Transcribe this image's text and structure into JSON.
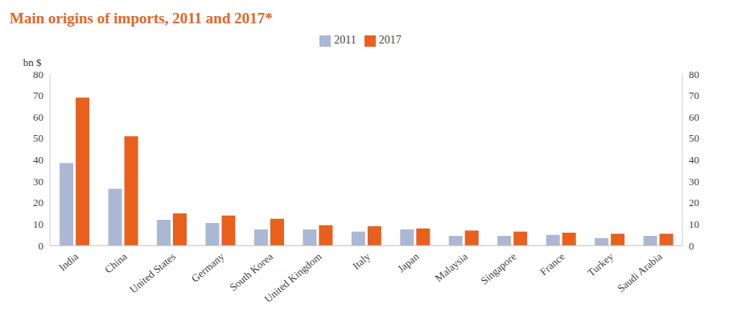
{
  "chart_data": {
    "type": "bar",
    "title": "Main origins of imports, 2011 and 2017*",
    "y_label": "bn $",
    "categories": [
      "India",
      "China",
      "United States",
      "Germany",
      "South Korea",
      "United Kingdom",
      "Italy",
      "Japan",
      "Malaysia",
      "Singapore",
      "France",
      "Turkey",
      "Saudi Arabia"
    ],
    "series": [
      {
        "name": "2011",
        "color": "#aab8d4",
        "values": [
          38.5,
          26.5,
          12,
          10.5,
          7.5,
          7.5,
          6.5,
          7.5,
          4.5,
          4.5,
          5,
          3.5,
          4.5
        ]
      },
      {
        "name": "2017",
        "color": "#e8601c",
        "values": [
          69,
          51,
          15,
          14,
          12.5,
          9.5,
          9,
          8,
          7,
          6.5,
          6,
          5.5,
          5.5
        ]
      }
    ],
    "ylim": [
      0,
      80
    ],
    "yticks": [
      0,
      10,
      20,
      30,
      40,
      50,
      60,
      70,
      80
    ],
    "y2lim": [
      0,
      80
    ],
    "y2ticks": [
      0,
      10,
      20,
      30,
      40,
      50,
      60,
      70,
      80
    ],
    "legend": "top",
    "grid": false
  }
}
